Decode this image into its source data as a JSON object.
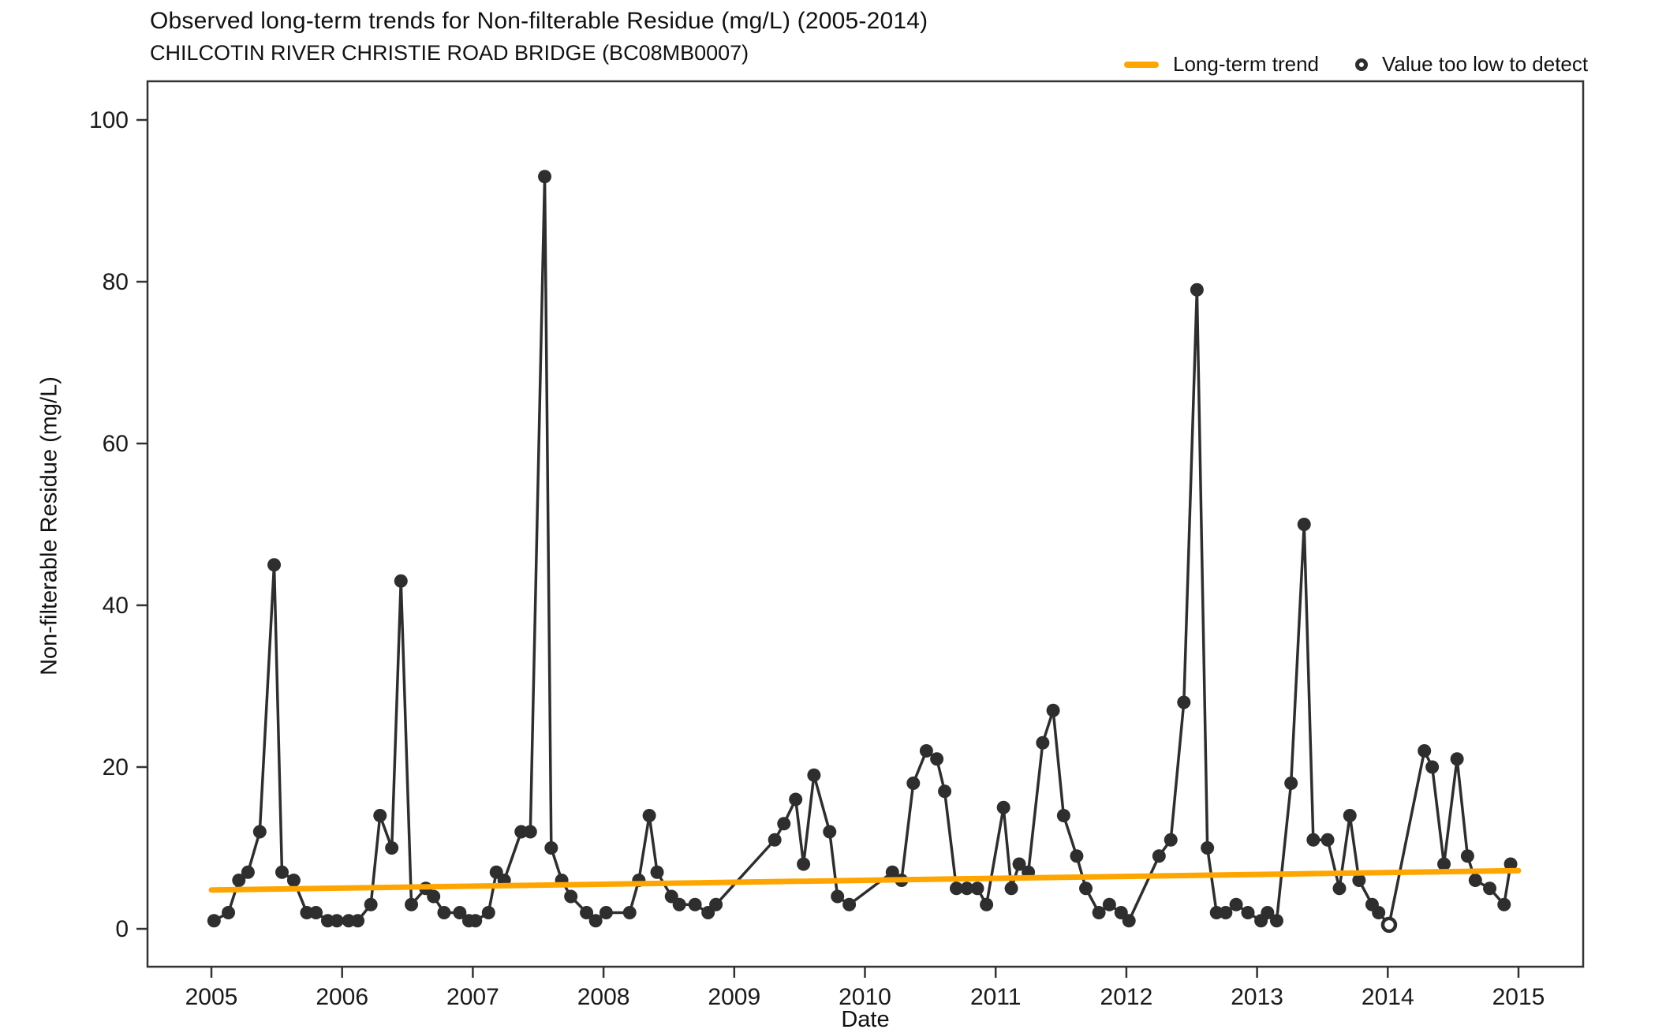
{
  "header": {
    "title": "Observed long-term trends for Non-filterable Residue (mg/L) (2005-2014)",
    "subtitle": "CHILCOTIN RIVER CHRISTIE ROAD BRIDGE (BC08MB0007)"
  },
  "legend": {
    "trend_label": "Long-term trend",
    "bdl_label": "Value too low to detect",
    "trend_color": "#FFA500",
    "point_color": "#2e2e2e"
  },
  "chart_data": {
    "type": "line",
    "title": "Observed long-term trends for Non-filterable Residue (mg/L) (2005-2014)",
    "subtitle": "CHILCOTIN RIVER CHRISTIE ROAD BRIDGE (BC08MB0007)",
    "xlabel": "Date",
    "ylabel": "Non-filterable Residue (mg/L)",
    "x_ticks": [
      2005,
      2006,
      2007,
      2008,
      2009,
      2010,
      2011,
      2012,
      2013,
      2014,
      2015
    ],
    "y_ticks": [
      0,
      20,
      40,
      60,
      80,
      100
    ],
    "xlim": [
      2004.5,
      2015.5
    ],
    "ylim": [
      0,
      105
    ],
    "grid": false,
    "legend_position": "top-right",
    "note": "points flagged bdl are below detection limit (open circle)",
    "series": [
      {
        "name": "Observed values",
        "style": "scatter-line",
        "color": "#2e2e2e",
        "points": [
          [
            2005.02,
            1
          ],
          [
            2005.13,
            2
          ],
          [
            2005.21,
            6
          ],
          [
            2005.28,
            7
          ],
          [
            2005.37,
            12
          ],
          [
            2005.48,
            45
          ],
          [
            2005.54,
            7
          ],
          [
            2005.63,
            6
          ],
          [
            2005.73,
            2
          ],
          [
            2005.8,
            2
          ],
          [
            2005.89,
            1
          ],
          [
            2005.96,
            1
          ],
          [
            2006.05,
            1
          ],
          [
            2006.12,
            1
          ],
          [
            2006.22,
            3
          ],
          [
            2006.29,
            14
          ],
          [
            2006.38,
            10
          ],
          [
            2006.45,
            43
          ],
          [
            2006.53,
            3
          ],
          [
            2006.64,
            5
          ],
          [
            2006.7,
            4
          ],
          [
            2006.78,
            2
          ],
          [
            2006.9,
            2
          ],
          [
            2006.97,
            1
          ],
          [
            2007.02,
            1
          ],
          [
            2007.12,
            2
          ],
          [
            2007.18,
            7
          ],
          [
            2007.24,
            6
          ],
          [
            2007.37,
            12
          ],
          [
            2007.44,
            12
          ],
          [
            2007.55,
            93
          ],
          [
            2007.6,
            10
          ],
          [
            2007.68,
            6
          ],
          [
            2007.75,
            4
          ],
          [
            2007.87,
            2
          ],
          [
            2007.94,
            1
          ],
          [
            2008.02,
            2
          ],
          [
            2008.2,
            2
          ],
          [
            2008.27,
            6
          ],
          [
            2008.35,
            14
          ],
          [
            2008.41,
            7
          ],
          [
            2008.52,
            4
          ],
          [
            2008.58,
            3
          ],
          [
            2008.7,
            3
          ],
          [
            2008.8,
            2
          ],
          [
            2008.86,
            3
          ],
          [
            2009.31,
            11
          ],
          [
            2009.38,
            13
          ],
          [
            2009.47,
            16
          ],
          [
            2009.53,
            8
          ],
          [
            2009.61,
            19
          ],
          [
            2009.73,
            12
          ],
          [
            2009.79,
            4
          ],
          [
            2009.88,
            3
          ],
          [
            2010.21,
            7
          ],
          [
            2010.28,
            6
          ],
          [
            2010.37,
            18
          ],
          [
            2010.47,
            22
          ],
          [
            2010.55,
            21
          ],
          [
            2010.61,
            17
          ],
          [
            2010.7,
            5
          ],
          [
            2010.78,
            5
          ],
          [
            2010.86,
            5
          ],
          [
            2010.93,
            3
          ],
          [
            2011.06,
            15
          ],
          [
            2011.12,
            5
          ],
          [
            2011.18,
            8
          ],
          [
            2011.25,
            7
          ],
          [
            2011.36,
            23
          ],
          [
            2011.44,
            27
          ],
          [
            2011.52,
            14
          ],
          [
            2011.62,
            9
          ],
          [
            2011.69,
            5
          ],
          [
            2011.79,
            2
          ],
          [
            2011.87,
            3
          ],
          [
            2011.96,
            2
          ],
          [
            2012.02,
            1
          ],
          [
            2012.25,
            9
          ],
          [
            2012.34,
            11
          ],
          [
            2012.44,
            28
          ],
          [
            2012.54,
            79
          ],
          [
            2012.62,
            10
          ],
          [
            2012.69,
            2
          ],
          [
            2012.76,
            2
          ],
          [
            2012.84,
            3
          ],
          [
            2012.93,
            2
          ],
          [
            2013.03,
            1
          ],
          [
            2013.08,
            2
          ],
          [
            2013.15,
            1
          ],
          [
            2013.26,
            18
          ],
          [
            2013.36,
            50
          ],
          [
            2013.43,
            11
          ],
          [
            2013.54,
            11
          ],
          [
            2013.63,
            5
          ],
          [
            2013.71,
            14
          ],
          [
            2013.78,
            6
          ],
          [
            2013.88,
            3
          ],
          [
            2013.93,
            2
          ],
          [
            2014.01,
            0.5,
            "bdl"
          ],
          [
            2014.28,
            22
          ],
          [
            2014.34,
            20
          ],
          [
            2014.43,
            8
          ],
          [
            2014.53,
            21
          ],
          [
            2014.61,
            9
          ],
          [
            2014.67,
            6
          ],
          [
            2014.78,
            5
          ],
          [
            2014.89,
            3
          ],
          [
            2014.94,
            8
          ]
        ]
      },
      {
        "name": "Long-term trend",
        "style": "line",
        "color": "#FFA500",
        "points": [
          [
            2005.0,
            4.8
          ],
          [
            2015.0,
            7.2
          ]
        ]
      }
    ]
  }
}
